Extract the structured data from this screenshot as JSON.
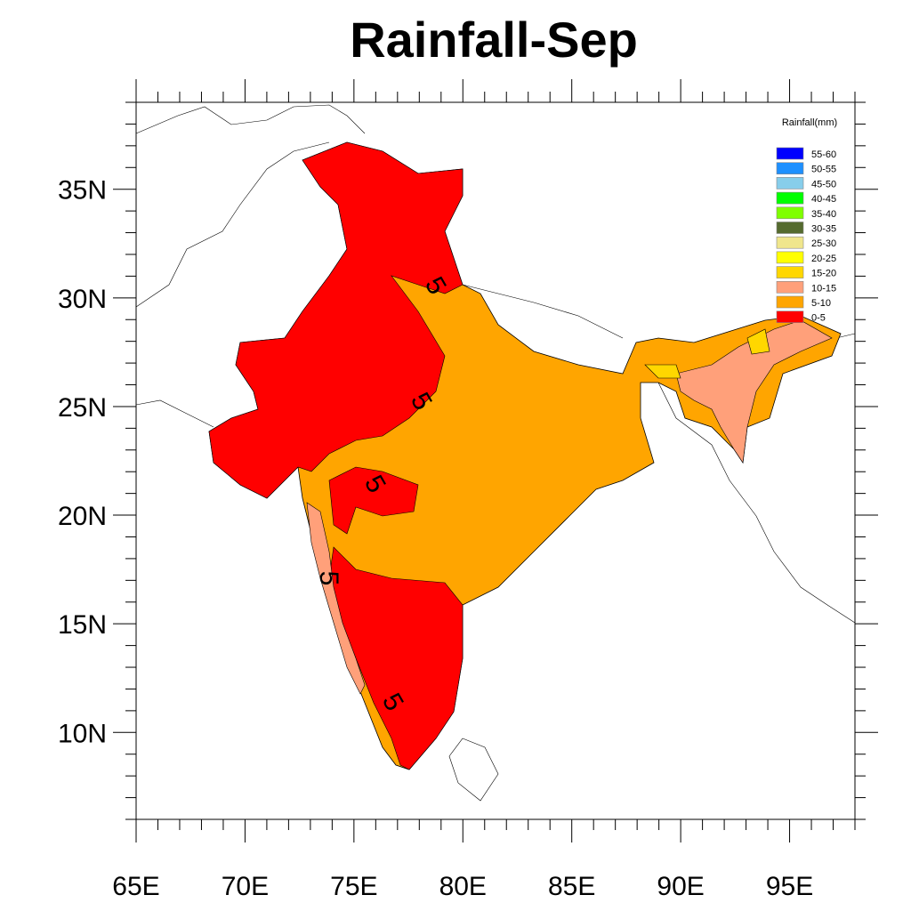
{
  "chart_data": {
    "type": "map",
    "title": "Rainfall-Sep",
    "lon_range": [
      65,
      98
    ],
    "lat_range": [
      6,
      39
    ],
    "x_ticks": [
      "65E",
      "70E",
      "75E",
      "80E",
      "85E",
      "90E",
      "95E"
    ],
    "x_tick_values": [
      65,
      70,
      75,
      80,
      85,
      90,
      95
    ],
    "y_ticks": [
      "35N",
      "30N",
      "25N",
      "20N",
      "15N",
      "10N"
    ],
    "y_tick_values": [
      35,
      30,
      25,
      20,
      15,
      10
    ],
    "legend": {
      "title": "Rainfall(mm)",
      "placement": "top-right",
      "entries": [
        {
          "label": "55-60",
          "color": "#0000ff"
        },
        {
          "label": "50-55",
          "color": "#1e90ff"
        },
        {
          "label": "45-50",
          "color": "#87ceeb"
        },
        {
          "label": "40-45",
          "color": "#00ff00"
        },
        {
          "label": "35-40",
          "color": "#7fff00"
        },
        {
          "label": "30-35",
          "color": "#556b2f"
        },
        {
          "label": "25-30",
          "color": "#f0e68c"
        },
        {
          "label": "20-25",
          "color": "#ffff00"
        },
        {
          "label": "15-20",
          "color": "#ffd700"
        },
        {
          "label": "10-15",
          "color": "#ffa07a"
        },
        {
          "label": "5-10",
          "color": "#ffa500"
        },
        {
          "label": "0-5",
          "color": "#ff0000"
        }
      ]
    },
    "contour_labels": [
      "5",
      "5",
      "5",
      "5",
      "5"
    ]
  }
}
